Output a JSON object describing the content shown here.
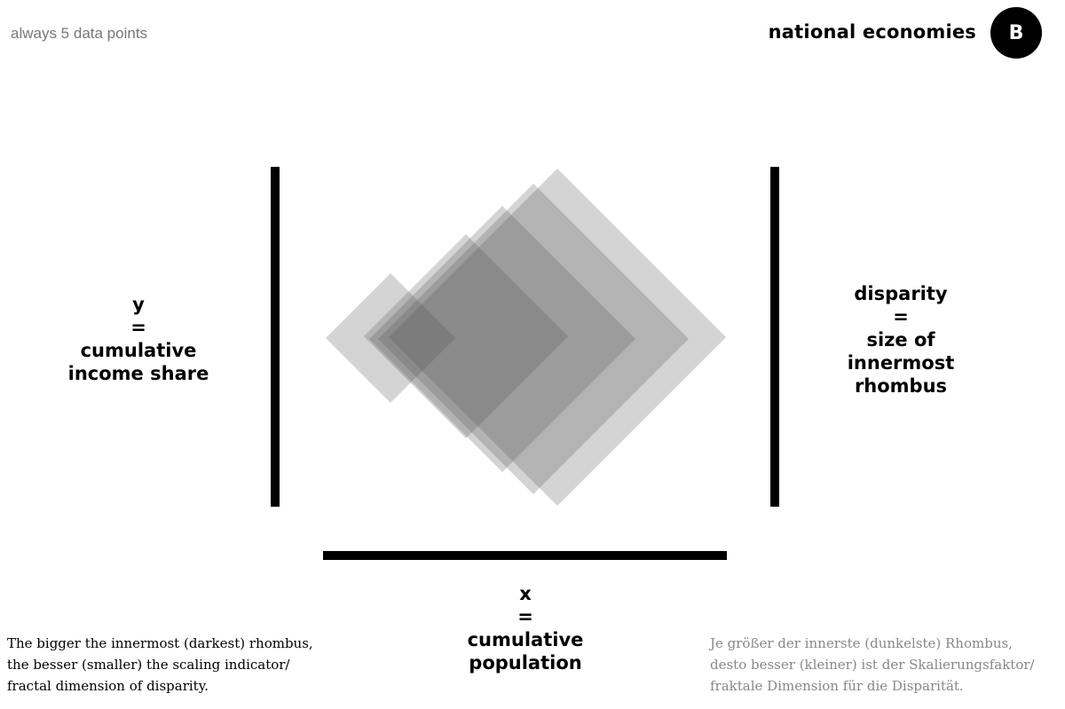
{
  "header": {
    "subtitle": "always 5 data points",
    "title": "national economies",
    "badge": "B"
  },
  "labels": {
    "y": [
      "y",
      "=",
      "cumulative",
      "income share"
    ],
    "disparity": [
      "disparity",
      "=",
      "size of",
      "innermost",
      "rhombus"
    ],
    "x": [
      "x",
      "=",
      "cumulative",
      "population"
    ]
  },
  "captions": {
    "english": [
      "The bigger the innermost (darkest) rhombus,",
      "the besser (smaller) the scaling indicator/",
      "fractal dimension of disparity."
    ],
    "german": [
      "Je größer der innerste (dunkelste) Rhombus,",
      "desto besser (kleiner) ist der Skalierungsfaktor/",
      "fraktale Dimension für die Disparität."
    ]
  },
  "colors": {
    "rhombus_fill": "#555555",
    "caption_german": "#888888"
  }
}
